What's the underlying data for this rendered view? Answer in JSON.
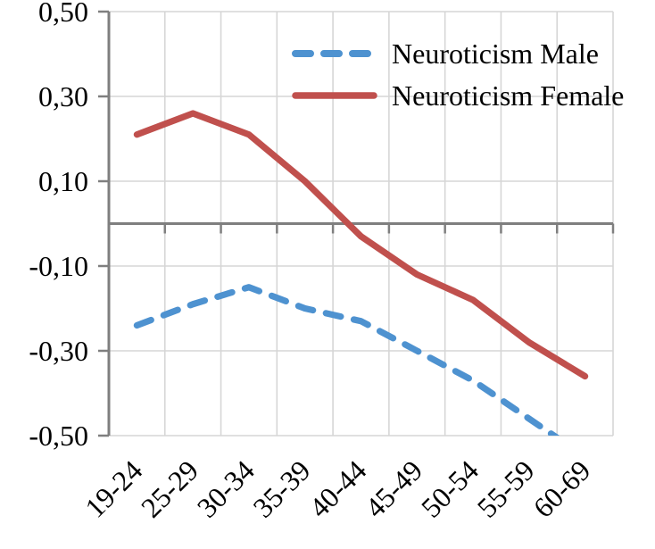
{
  "chart_data": {
    "type": "line",
    "categories": [
      "19-24",
      "25-29",
      "30-34",
      "35-39",
      "40-44",
      "45-49",
      "50-54",
      "55-59",
      "60-69"
    ],
    "series": [
      {
        "name": "Neuroticism Male",
        "values": [
          -0.24,
          -0.19,
          -0.15,
          -0.2,
          -0.23,
          -0.3,
          -0.37,
          -0.46,
          -0.55
        ],
        "color": "#4E92D0",
        "line_style": "dashed"
      },
      {
        "name": "Neuroticism Female",
        "values": [
          0.21,
          0.26,
          0.21,
          0.1,
          -0.03,
          -0.12,
          -0.18,
          -0.28,
          -0.36
        ],
        "color": "#C0504D",
        "line_style": "solid"
      }
    ],
    "title": "",
    "xlabel": "",
    "ylabel": "",
    "ylim": [
      -0.5,
      0.5
    ],
    "yticks": [
      0.5,
      0.3,
      0.1,
      -0.1,
      -0.3,
      -0.5
    ],
    "ytick_labels": [
      "0,50",
      "0,30",
      "0,10",
      "-0,10",
      "-0,30",
      "-0,50"
    ],
    "decimal_separator": ",",
    "grid": true,
    "legend_position": "top-right"
  },
  "colors": {
    "male_line": "#4E92D0",
    "female_line": "#C0504D",
    "gridline": "#D6D6D6",
    "axis": "#7F7F7F",
    "text": "#000000",
    "background": "#FFFFFF"
  }
}
